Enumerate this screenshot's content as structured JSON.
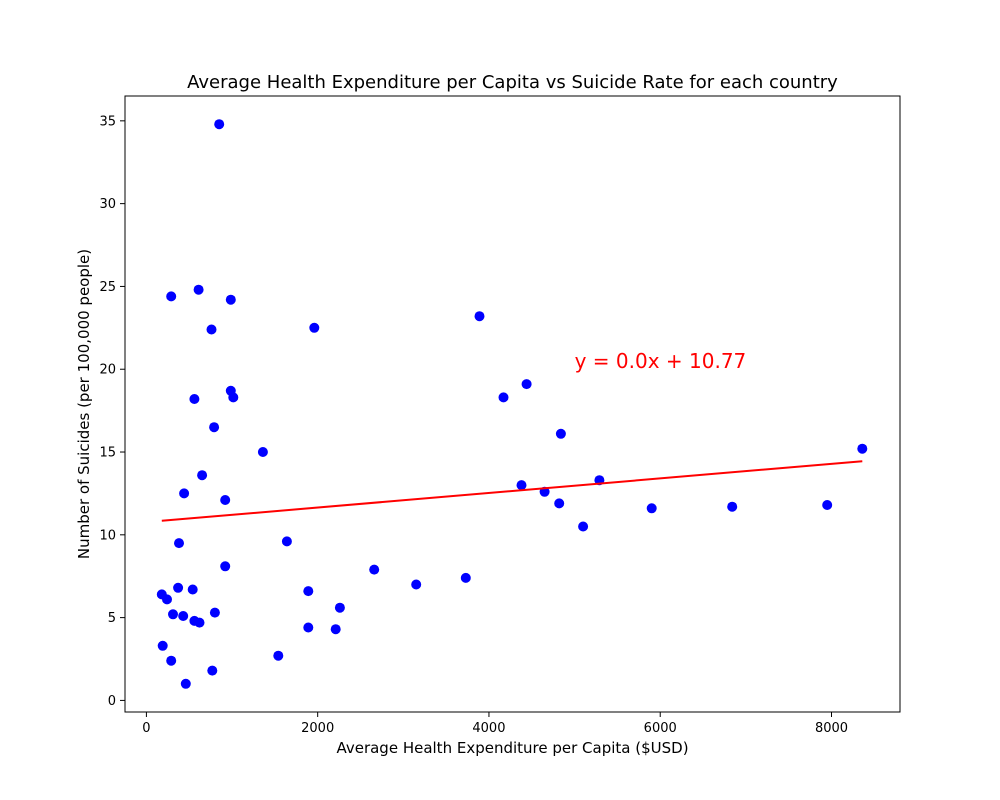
{
  "chart_data": {
    "type": "scatter",
    "title": "Average Health Expenditure per Capita vs Suicide Rate for each country",
    "xlabel": "Average Health Expenditure per Capita ($USD)",
    "ylabel": "Number of Suicides (per 100,000 people)",
    "xlim": [
      -250,
      8800
    ],
    "ylim": [
      -0.7,
      36.5
    ],
    "xticks": [
      0,
      2000,
      4000,
      6000,
      8000
    ],
    "yticks": [
      0,
      5,
      10,
      15,
      20,
      25,
      30,
      35
    ],
    "grid": false,
    "point_color": "#0000ff",
    "line_color": "#ff0000",
    "points": [
      [
        850,
        34.8
      ],
      [
        290,
        24.4
      ],
      [
        610,
        24.8
      ],
      [
        985,
        24.2
      ],
      [
        760,
        22.4
      ],
      [
        1960,
        22.5
      ],
      [
        3890,
        23.2
      ],
      [
        985,
        18.7
      ],
      [
        1015,
        18.3
      ],
      [
        560,
        18.2
      ],
      [
        4440,
        19.1
      ],
      [
        4170,
        18.3
      ],
      [
        790,
        16.5
      ],
      [
        4840,
        16.1
      ],
      [
        8360,
        15.2
      ],
      [
        1360,
        15.0
      ],
      [
        650,
        13.6
      ],
      [
        5290,
        13.3
      ],
      [
        440,
        12.5
      ],
      [
        920,
        12.1
      ],
      [
        4380,
        13.0
      ],
      [
        4650,
        12.6
      ],
      [
        4820,
        11.9
      ],
      [
        5100,
        10.5
      ],
      [
        5900,
        11.6
      ],
      [
        6840,
        11.7
      ],
      [
        7950,
        11.8
      ],
      [
        1640,
        9.6
      ],
      [
        380,
        9.5
      ],
      [
        920,
        8.1
      ],
      [
        2660,
        7.9
      ],
      [
        3150,
        7.0
      ],
      [
        3730,
        7.4
      ],
      [
        180,
        6.4
      ],
      [
        240,
        6.1
      ],
      [
        370,
        6.8
      ],
      [
        540,
        6.7
      ],
      [
        1890,
        6.6
      ],
      [
        2260,
        5.6
      ],
      [
        310,
        5.2
      ],
      [
        430,
        5.1
      ],
      [
        800,
        5.3
      ],
      [
        560,
        4.8
      ],
      [
        620,
        4.7
      ],
      [
        1890,
        4.4
      ],
      [
        2210,
        4.3
      ],
      [
        190,
        3.3
      ],
      [
        1540,
        2.7
      ],
      [
        290,
        2.4
      ],
      [
        770,
        1.8
      ],
      [
        460,
        1.0
      ]
    ],
    "regression": {
      "slope": 0.00044,
      "intercept": 10.77,
      "x_range": [
        180,
        8360
      ],
      "equation_label": "y = 0.0x + 10.77",
      "label_x": 5000,
      "label_y": 20
    }
  }
}
